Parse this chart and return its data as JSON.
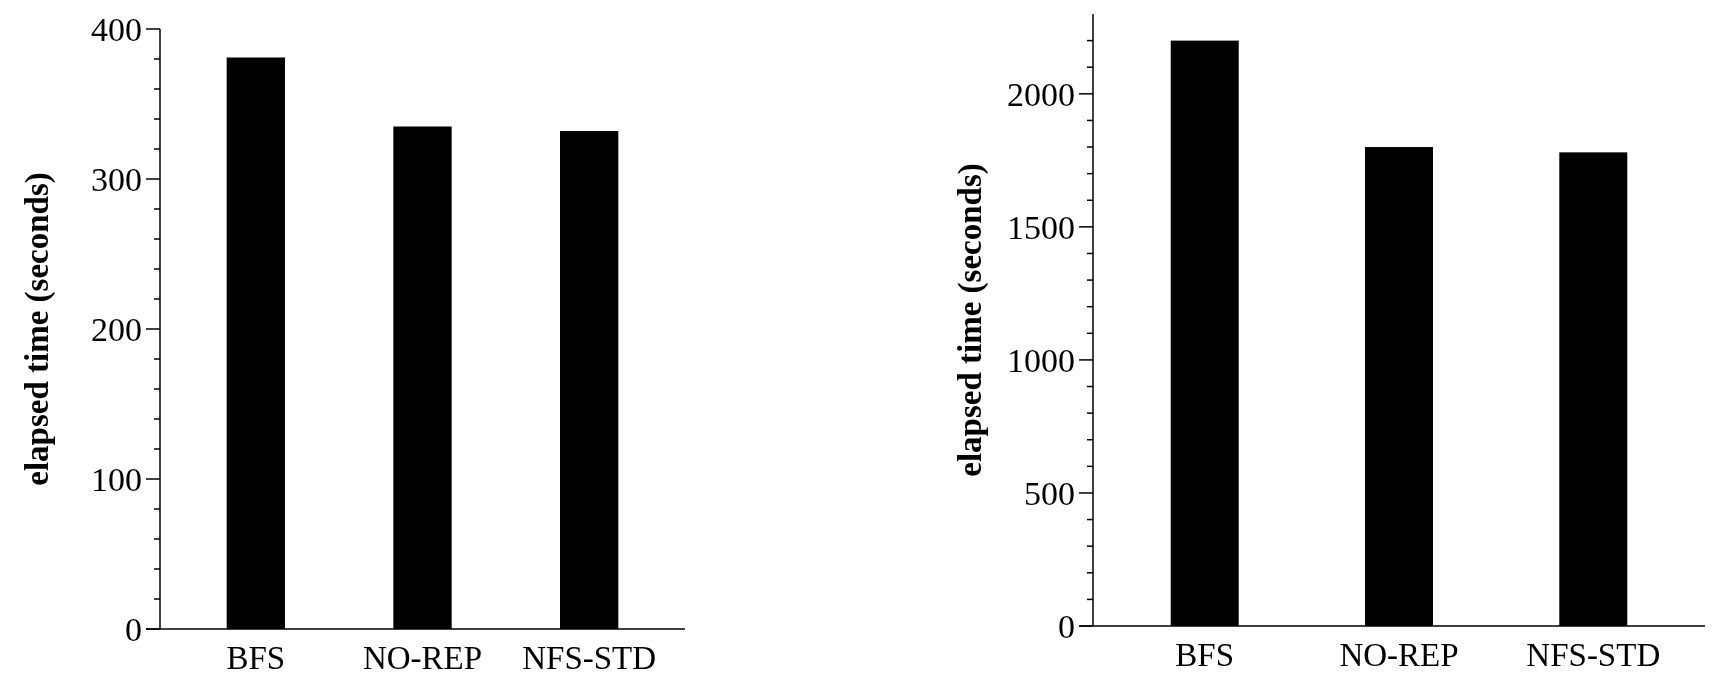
{
  "chart_data": [
    {
      "type": "bar",
      "ylabel": "elapsed time (seconds)",
      "categories": [
        "BFS",
        "NO-REP",
        "NFS-STD"
      ],
      "values": [
        381,
        335,
        332
      ],
      "color": "#000000",
      "ylim": [
        0,
        400
      ],
      "yticks": [
        0,
        {
          "value": 20,
          "label": null
        },
        {
          "value": 40,
          "label": null
        },
        {
          "value": 60,
          "label": null
        },
        {
          "value": 80,
          "label": null
        },
        100,
        {
          "value": 120,
          "label": null
        },
        {
          "value": 140,
          "label": null
        },
        {
          "value": 160,
          "label": null
        },
        {
          "value": 180,
          "label": null
        },
        200,
        {
          "value": 220,
          "label": null
        },
        {
          "value": 240,
          "label": null
        },
        {
          "value": 260,
          "label": null
        },
        {
          "value": 280,
          "label": null
        },
        300,
        {
          "value": 320,
          "label": null
        },
        {
          "value": 340,
          "label": null
        },
        {
          "value": 360,
          "label": null
        },
        {
          "value": 380,
          "label": null
        },
        400
      ],
      "grid": false
    },
    {
      "type": "bar",
      "ylabel": "elapsed time (seconds)",
      "categories": [
        "BFS",
        "NO-REP",
        "NFS-STD"
      ],
      "values": [
        2200,
        1800,
        1780
      ],
      "color": "#000000",
      "ylim": [
        0,
        2300
      ],
      "yticks": [
        0,
        {
          "value": 100,
          "label": null
        },
        {
          "value": 200,
          "label": null
        },
        {
          "value": 300,
          "label": null
        },
        {
          "value": 400,
          "label": null
        },
        500,
        {
          "value": 600,
          "label": null
        },
        {
          "value": 700,
          "label": null
        },
        {
          "value": 800,
          "label": null
        },
        {
          "value": 900,
          "label": null
        },
        1000,
        {
          "value": 1100,
          "label": null
        },
        {
          "value": 1200,
          "label": null
        },
        {
          "value": 1300,
          "label": null
        },
        {
          "value": 1400,
          "label": null
        },
        1500,
        {
          "value": 1600,
          "label": null
        },
        {
          "value": 1700,
          "label": null
        },
        {
          "value": 1800,
          "label": null
        },
        {
          "value": 1900,
          "label": null
        },
        2000,
        {
          "value": 2100,
          "label": null
        },
        {
          "value": 2200,
          "label": null
        }
      ],
      "grid": false
    }
  ]
}
